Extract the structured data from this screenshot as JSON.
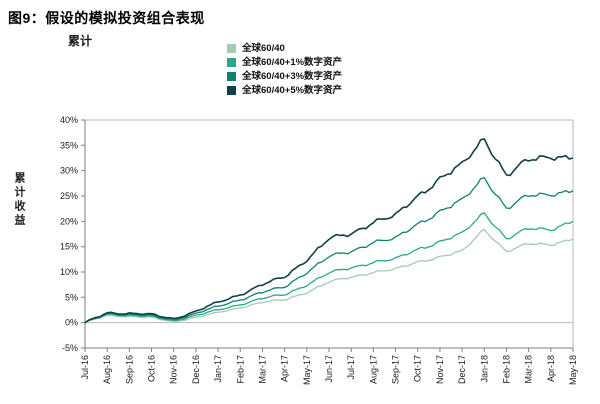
{
  "header": {
    "title": "图9：假设的模拟投资组合表现",
    "subtitle": "累计"
  },
  "chart_data": {
    "type": "line",
    "title": "图9：假设的模拟投资组合表现",
    "subtitle": "累计",
    "ylabel": "累计收益",
    "xlabel": "",
    "grid": "zero-line-only",
    "legend_position": "top-right",
    "ylim": [
      -5,
      40
    ],
    "ytick_values": [
      -5,
      0,
      5,
      10,
      15,
      20,
      25,
      30,
      35,
      40
    ],
    "ytick_labels": [
      "-5%",
      "0%",
      "5%",
      "10%",
      "15%",
      "20%",
      "25%",
      "30%",
      "35%",
      "40%"
    ],
    "x_categories": [
      "Jul-16",
      "Aug-16",
      "Sep-16",
      "Oct-16",
      "Nov-16",
      "Dec-16",
      "Jan-17",
      "Feb-17",
      "Mar-17",
      "Apr-17",
      "May-17",
      "Jun-17",
      "Jul-17",
      "Aug-17",
      "Sep-17",
      "Oct-17",
      "Nov-17",
      "Dec-17",
      "Jan-18",
      "Feb-18",
      "Mar-18",
      "Apr-18",
      "May-18"
    ],
    "series": [
      {
        "name": "全球60/40",
        "color": "#a6c9b5",
        "values": [
          0,
          1.5,
          1.2,
          1.0,
          0.2,
          1.0,
          2.0,
          3.0,
          4.0,
          4.5,
          6.0,
          8.0,
          9.0,
          10.0,
          10.5,
          12.0,
          13.0,
          14.0,
          18.5,
          14.0,
          15.5,
          15.5,
          16.5
        ]
      },
      {
        "name": "全球60/40+1%数字资产",
        "color": "#28a98b",
        "values": [
          0,
          1.7,
          1.4,
          1.2,
          0.4,
          1.4,
          2.5,
          3.6,
          4.8,
          5.5,
          7.5,
          9.8,
          10.8,
          12.0,
          12.5,
          14.5,
          16.0,
          17.5,
          21.8,
          16.5,
          18.5,
          18.5,
          20.0
        ]
      },
      {
        "name": "全球60/40+3%数字资产",
        "color": "#0f816d",
        "values": [
          0,
          1.9,
          1.6,
          1.4,
          0.6,
          1.8,
          3.2,
          4.6,
          6.0,
          7.0,
          10.0,
          13.0,
          14.0,
          16.0,
          16.5,
          19.5,
          22.0,
          24.0,
          28.8,
          22.5,
          25.0,
          25.5,
          26.0
        ]
      },
      {
        "name": "全球60/40+5%数字资产",
        "color": "#123f4a",
        "values": [
          0,
          2.0,
          1.8,
          1.6,
          0.8,
          2.2,
          4.0,
          5.6,
          7.5,
          9.0,
          12.5,
          16.5,
          17.5,
          20.0,
          21.0,
          25.0,
          28.5,
          31.0,
          36.5,
          29.0,
          32.0,
          33.0,
          32.5
        ]
      }
    ]
  }
}
